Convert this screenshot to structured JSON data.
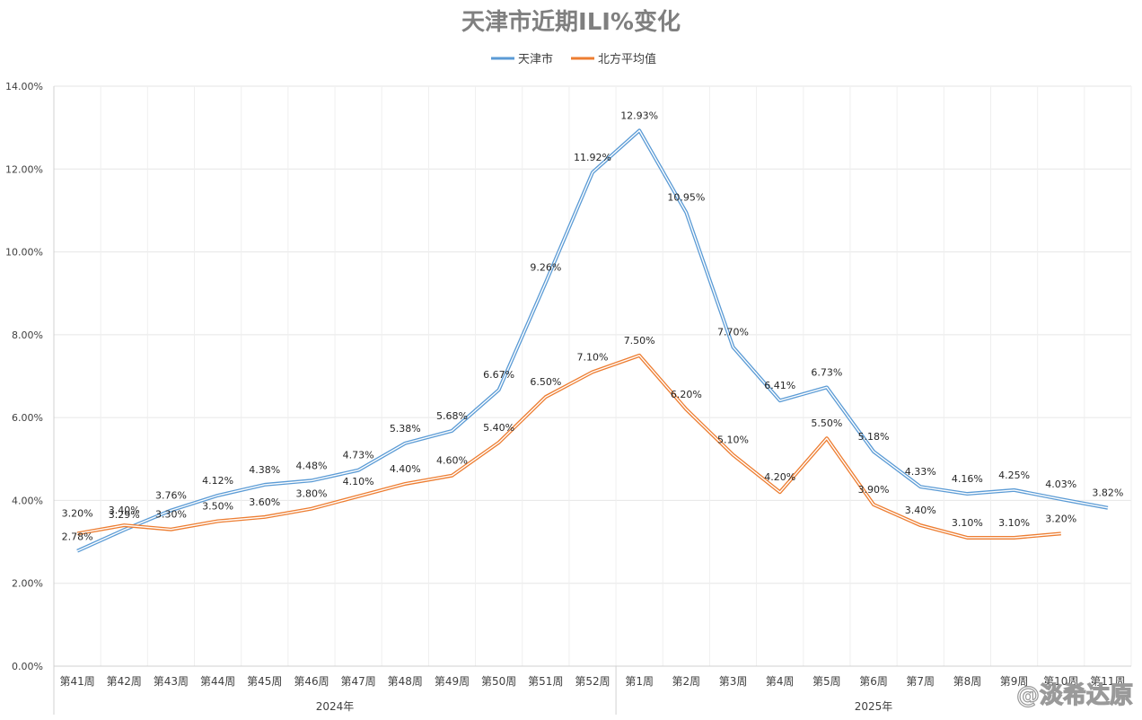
{
  "chart_data": {
    "type": "line",
    "title": "天津市近期ILI%变化",
    "categories": [
      "第41周",
      "第42周",
      "第43周",
      "第44周",
      "第45周",
      "第46周",
      "第47周",
      "第48周",
      "第49周",
      "第50周",
      "第51周",
      "第52周",
      "第1周",
      "第2周",
      "第3周",
      "第4周",
      "第5周",
      "第6周",
      "第7周",
      "第8周",
      "第9周",
      "第10周",
      "第11周"
    ],
    "groups": [
      {
        "label": "2024年",
        "span": 12
      },
      {
        "label": "2025年",
        "span": 11
      }
    ],
    "series": [
      {
        "name": "天津市",
        "color": "#5b9bd5",
        "values": [
          2.78,
          3.29,
          3.76,
          4.12,
          4.38,
          4.48,
          4.73,
          5.38,
          5.68,
          6.67,
          9.26,
          11.92,
          12.93,
          10.95,
          7.7,
          6.41,
          6.73,
          5.18,
          4.33,
          4.16,
          4.25,
          4.03,
          3.82
        ],
        "labels": [
          "2.78%",
          "3.29%",
          "3.76%",
          "4.12%",
          "4.38%",
          "4.48%",
          "4.73%",
          "5.38%",
          "5.68%",
          "6.67%",
          "9.26%",
          "11.92%",
          "12.93%",
          "10.95%",
          "7.70%",
          "6.41%",
          "6.73%",
          "5.18%",
          "4.33%",
          "4.16%",
          "4.25%",
          "4.03%",
          "3.82%"
        ]
      },
      {
        "name": "北方平均值",
        "color": "#ed7d31",
        "values": [
          3.2,
          3.4,
          3.3,
          3.5,
          3.6,
          3.8,
          4.1,
          4.4,
          4.6,
          5.4,
          6.5,
          7.1,
          7.5,
          6.2,
          5.1,
          4.2,
          5.5,
          3.9,
          3.4,
          3.1,
          3.1,
          3.2,
          null
        ],
        "labels": [
          "3.20%",
          "3.40%",
          "3.30%",
          "3.50%",
          "3.60%",
          "3.80%",
          "4.10%",
          "4.40%",
          "4.60%",
          "5.40%",
          "6.50%",
          "7.10%",
          "7.50%",
          "6.20%",
          "5.10%",
          "4.20%",
          "5.50%",
          "3.90%",
          "3.40%",
          "3.10%",
          "3.10%",
          "3.20%",
          null
        ]
      }
    ],
    "yticks": [
      "0.00%",
      "2.00%",
      "4.00%",
      "6.00%",
      "8.00%",
      "10.00%",
      "12.00%",
      "14.00%"
    ],
    "ylim": [
      0,
      14
    ],
    "grid": true,
    "legend_position": "top-center"
  },
  "watermark": {
    "text": "@淡希达原"
  }
}
